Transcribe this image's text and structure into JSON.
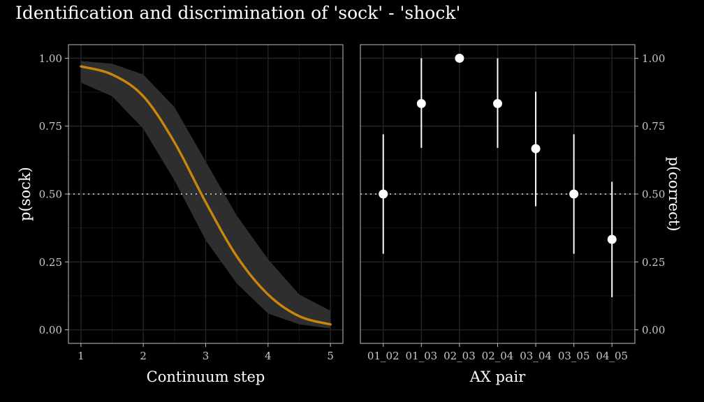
{
  "title": "Identification and discrimination of 'sock' - 'shock'",
  "colors": {
    "background": "#000000",
    "panel_border": "#bfbfbf",
    "grid_major": "#262626",
    "grid_minor": "#141414",
    "curve": "#c8860d",
    "ribbon": "#2e2e2e",
    "points": "#ffffff",
    "text": "#ffffff",
    "tick_text": "#c8c8c8"
  },
  "chart_data": [
    {
      "type": "line",
      "panel": "identification",
      "xlabel": "Continuum step",
      "ylabel": "p(sock)",
      "xlim": [
        0.8,
        5.2
      ],
      "ylim": [
        -0.05,
        1.05
      ],
      "x_ticks": [
        1,
        2,
        3,
        4,
        5
      ],
      "y_ticks": [
        0,
        0.25,
        0.5,
        0.75,
        1.0
      ],
      "y_tick_labels": [
        "0.00",
        "0.25",
        "0.50",
        "0.75",
        "1.00"
      ],
      "reference_line": 0.5,
      "series": [
        {
          "x": [
            1.0,
            1.5,
            2.0,
            2.5,
            3.0,
            3.5,
            4.0,
            4.5,
            5.0
          ],
          "y": [
            0.97,
            0.94,
            0.86,
            0.69,
            0.47,
            0.27,
            0.13,
            0.05,
            0.02
          ],
          "lower": [
            0.91,
            0.86,
            0.74,
            0.55,
            0.33,
            0.17,
            0.06,
            0.02,
            0.005
          ],
          "upper": [
            0.99,
            0.98,
            0.94,
            0.82,
            0.62,
            0.42,
            0.26,
            0.13,
            0.07
          ]
        }
      ],
      "grid": true
    },
    {
      "type": "scatter",
      "panel": "discrimination",
      "xlabel": "AX pair",
      "ylabel": "p(correct)",
      "ylim": [
        -0.05,
        1.05
      ],
      "y_ticks": [
        0,
        0.25,
        0.5,
        0.75,
        1.0
      ],
      "y_tick_labels": [
        "0.00",
        "0.25",
        "0.50",
        "0.75",
        "1.00"
      ],
      "y_axis_position": "right",
      "reference_line": 0.5,
      "categories": [
        "01_02",
        "01_03",
        "02_03",
        "02_04",
        "03_04",
        "03_05",
        "04_05"
      ],
      "values": [
        0.5,
        0.833,
        1.0,
        0.833,
        0.667,
        0.5,
        0.333
      ],
      "lower": [
        0.28,
        0.67,
        1.0,
        0.67,
        0.455,
        0.28,
        0.12
      ],
      "upper": [
        0.72,
        1.0,
        1.0,
        1.0,
        0.877,
        0.72,
        0.545
      ],
      "grid": true
    }
  ]
}
